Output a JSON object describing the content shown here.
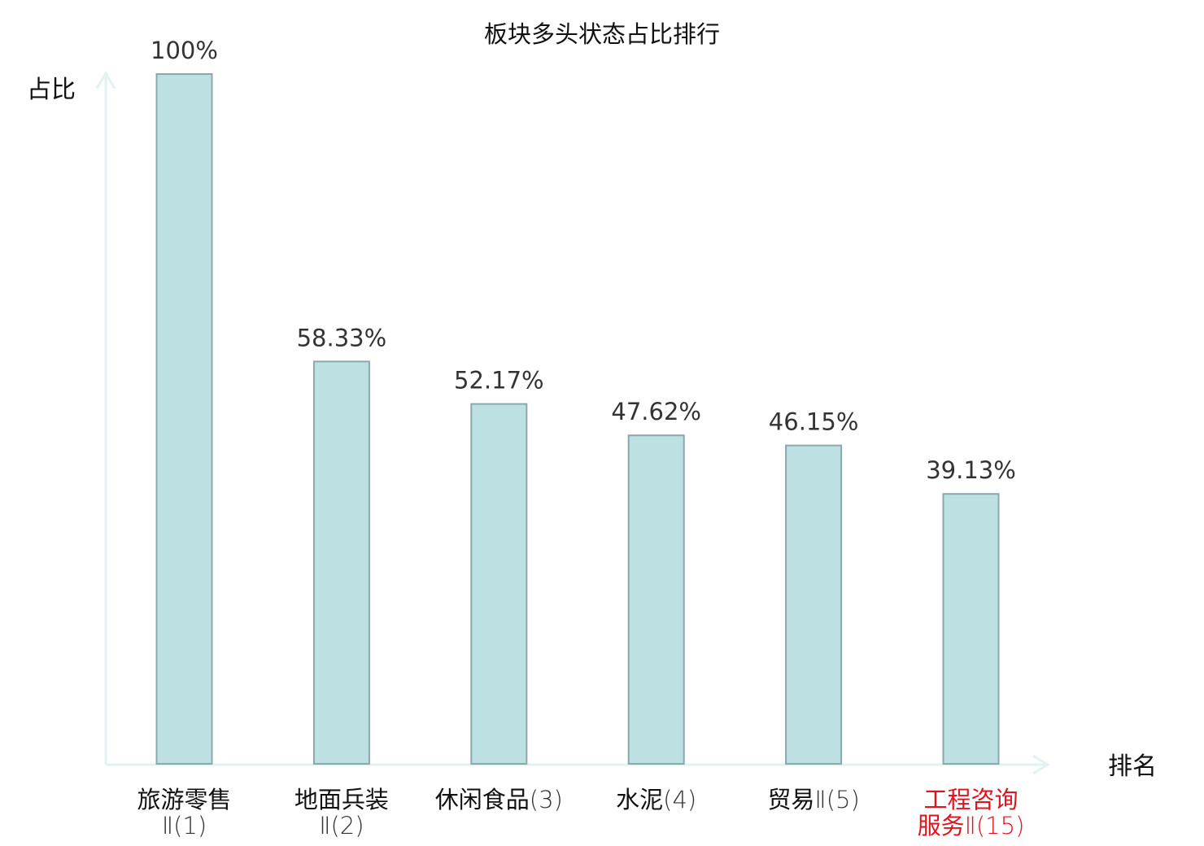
{
  "chart_data": {
    "type": "bar",
    "title": "板块多头状态占比排行",
    "ylabel": "占比",
    "xlabel": "排名",
    "categories": [
      [
        "旅游零售",
        "Ⅱ(1)"
      ],
      [
        "地面兵装",
        "Ⅱ(2)"
      ],
      [
        "休闲食品(3)"
      ],
      [
        "水泥(4)"
      ],
      [
        "贸易Ⅱ(5)"
      ],
      [
        "工程咨询",
        "服务Ⅱ(15)"
      ]
    ],
    "values": [
      100,
      58.33,
      52.17,
      47.62,
      46.15,
      39.13
    ],
    "value_labels": [
      "100%",
      "58.33%",
      "52.17%",
      "47.62%",
      "46.15%",
      "39.13%"
    ],
    "highlight_index": 5,
    "ylim": [
      0,
      100
    ],
    "grid": false,
    "legend": "none"
  },
  "colors": {
    "bar_fill": "#bde0e3",
    "bar_stroke": "#8ba8ad",
    "axis": "#e1f3f0",
    "text": "#111111",
    "value_text": "#333333",
    "highlight_text": "#e0141e"
  }
}
